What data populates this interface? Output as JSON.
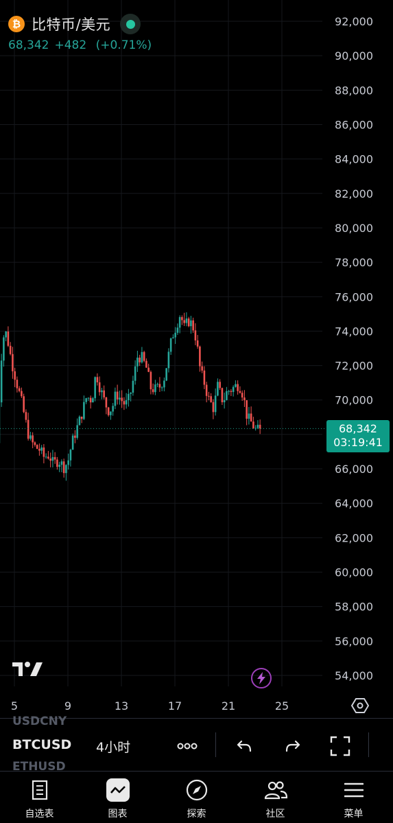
{
  "header": {
    "coin_glyph": "₿",
    "title": "比特币/美元",
    "last_price": "68,342",
    "change": "+482",
    "change_pct": "(+0.71%)"
  },
  "price_badge": {
    "price": "68,342",
    "countdown": "03:19:41"
  },
  "colors": {
    "up": "#26a69a",
    "down": "#ef5350",
    "badge": "#0d9b86",
    "accent": "#9c3fb9",
    "btc": "#f7931a"
  },
  "chart_data": {
    "type": "candlestick",
    "y_ticks": [
      "92,000",
      "90,000",
      "88,000",
      "86,000",
      "84,000",
      "82,000",
      "80,000",
      "78,000",
      "76,000",
      "74,000",
      "72,000",
      "70,000",
      "68,000",
      "66,000",
      "64,000",
      "62,000",
      "60,000",
      "58,000",
      "56,000",
      "54,000"
    ],
    "x_ticks": [
      "5",
      "9",
      "13",
      "17",
      "21",
      "25"
    ],
    "ylim": [
      53400,
      92800
    ],
    "last_price": 68342,
    "grid": true,
    "path": [
      [
        3.7,
        67500
      ],
      [
        4.1,
        73600
      ],
      [
        4.4,
        73900
      ],
      [
        4.8,
        72200
      ],
      [
        5.2,
        70900
      ],
      [
        5.5,
        70000
      ],
      [
        5.8,
        68900
      ],
      [
        6.1,
        67800
      ],
      [
        6.5,
        67300
      ],
      [
        6.9,
        67100
      ],
      [
        7.2,
        66700
      ],
      [
        7.6,
        66800
      ],
      [
        7.9,
        66300
      ],
      [
        8.3,
        66500
      ],
      [
        8.7,
        66100
      ],
      [
        9.0,
        66400
      ],
      [
        9.3,
        67500
      ],
      [
        9.6,
        68200
      ],
      [
        10.0,
        69100
      ],
      [
        10.4,
        70200
      ],
      [
        10.8,
        70000
      ],
      [
        11.1,
        71600
      ],
      [
        11.4,
        70700
      ],
      [
        11.7,
        70000
      ],
      [
        12.0,
        69400
      ],
      [
        12.3,
        69500
      ],
      [
        12.6,
        70400
      ],
      [
        12.9,
        70100
      ],
      [
        13.3,
        69700
      ],
      [
        13.6,
        70100
      ],
      [
        13.9,
        71200
      ],
      [
        14.2,
        72500
      ],
      [
        14.5,
        72500
      ],
      [
        14.9,
        71800
      ],
      [
        15.2,
        70700
      ],
      [
        15.5,
        70600
      ],
      [
        15.9,
        70800
      ],
      [
        16.2,
        71300
      ],
      [
        16.5,
        72500
      ],
      [
        16.8,
        73700
      ],
      [
        17.1,
        74300
      ],
      [
        17.4,
        75000
      ],
      [
        17.7,
        74200
      ],
      [
        18.0,
        74600
      ],
      [
        18.3,
        74400
      ],
      [
        18.6,
        73500
      ],
      [
        18.9,
        71700
      ],
      [
        19.2,
        71000
      ],
      [
        19.5,
        70100
      ],
      [
        19.9,
        69500
      ],
      [
        20.2,
        70800
      ],
      [
        20.6,
        69900
      ],
      [
        20.9,
        70500
      ],
      [
        21.2,
        70600
      ],
      [
        21.5,
        70800
      ],
      [
        21.8,
        70900
      ],
      [
        22.1,
        70300
      ],
      [
        22.4,
        69000
      ],
      [
        22.7,
        68700
      ],
      [
        23.1,
        68200
      ],
      [
        23.4,
        68342
      ]
    ]
  },
  "toolbar": {
    "symbol": "BTCUSD",
    "interval": "4小时",
    "ghost_above": "USDCNY",
    "ghost_below": "ETHUSD"
  },
  "icons": {
    "logo": "tradingview-logo-icon",
    "bolt": "lightning-icon",
    "settings": "settings-hexagon-icon",
    "more": "more-dots-icon",
    "undo": "undo-icon",
    "redo": "redo-icon",
    "fullscreen": "fullscreen-icon"
  },
  "nav": [
    {
      "label": "自选表",
      "icon": "watchlist-icon"
    },
    {
      "label": "图表",
      "icon": "chart-icon"
    },
    {
      "label": "探索",
      "icon": "compass-icon"
    },
    {
      "label": "社区",
      "icon": "community-icon"
    },
    {
      "label": "菜单",
      "icon": "menu-icon"
    }
  ]
}
